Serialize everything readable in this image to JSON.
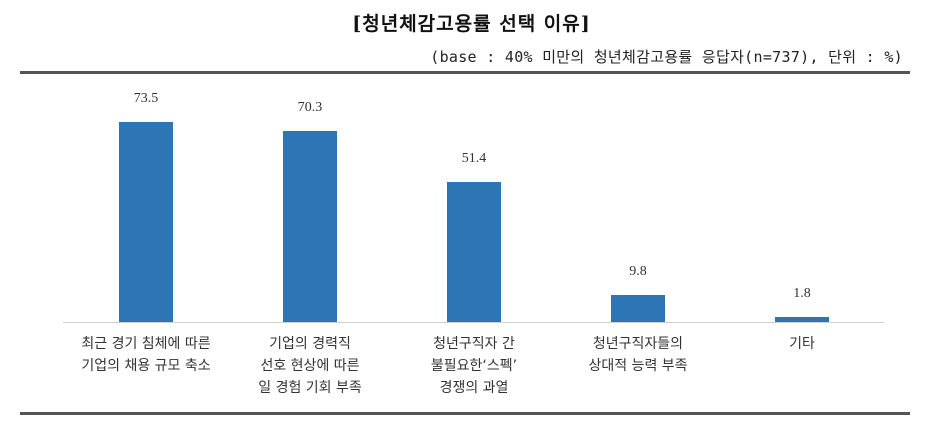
{
  "header": {
    "title": "[청년체감고용률 선택 이유]",
    "subtitle": "(base : 40% 미만의 청년체감고용률 응답자(n=737), 단위 : %)"
  },
  "chart_data": {
    "type": "bar",
    "title": "[청년체감고용률 선택 이유]",
    "subtitle": "(base : 40% 미만의 청년체감고용률 응답자(n=737), 단위 : %)",
    "xlabel": "",
    "ylabel": "",
    "unit": "%",
    "ylim": [
      0,
      80
    ],
    "grid": false,
    "legend": "none",
    "bar_color": "#2e75b6",
    "categories": [
      "최근 경기 침체에 따른 기업의 채용 규모 축소",
      "기업의 경력직 선호 현상에 따른 일 경험 기회 부족",
      "청년구직자 간 불필요한‘스펙’ 경쟁의 과열",
      "청년구직자들의 상대적 능력 부족",
      "기타"
    ],
    "values": [
      73.5,
      70.3,
      51.4,
      9.8,
      1.8
    ],
    "value_labels": [
      "73.5",
      "70.3",
      "51.4",
      "9.8",
      "1.8"
    ]
  },
  "bars": [
    {
      "label_lines": [
        "최근 경기 침체에 따른",
        "기업의 채용 규모 축소"
      ],
      "value": "73.5"
    },
    {
      "label_lines": [
        "기업의 경력직",
        "선호 현상에 따른",
        "일 경험 기회 부족"
      ],
      "value": "70.3"
    },
    {
      "label_lines": [
        "청년구직자 간",
        "불필요한‘스펙’",
        "경쟁의 과열"
      ],
      "value": "51.4"
    },
    {
      "label_lines": [
        "청년구직자들의",
        "상대적 능력 부족"
      ],
      "value": "9.8"
    },
    {
      "label_lines": [
        "기타"
      ],
      "value": "1.8"
    }
  ]
}
